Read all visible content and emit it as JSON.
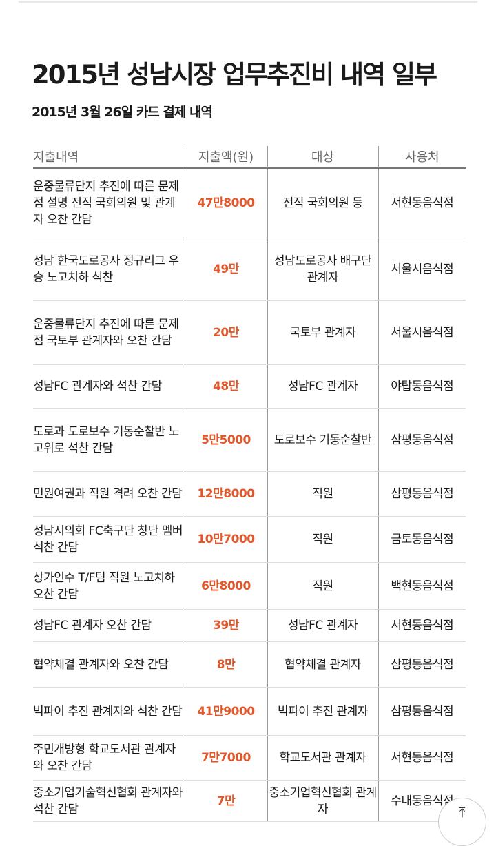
{
  "title": "2015년 성남시장 업무추진비 내역 일부",
  "subtitle": "2015년 3월 26일 카드 결제 내역",
  "headers": [
    "지출내역",
    "지출액(원)",
    "대상",
    "사용처"
  ],
  "rows": [
    {
      "desc": "운중물류단지 추진에 따른 문제점 설명 전직 국회의원 및 관계자 오찬 간담",
      "amount": "47만8000",
      "target": "전직 국회의원 등",
      "place": "서현동음식점"
    },
    {
      "desc": "성남 한국도로공사 정규리그 우승 노고치하 석찬",
      "amount": "49만",
      "target": "성남도로공사 배구단 관계자",
      "place": "서울시음식점"
    },
    {
      "desc": "운중물류단지 추진에 따른 문제점 국토부 관계자와 오찬 간담",
      "amount": "20만",
      "target": "국토부 관계자",
      "place": "서울시음식점"
    },
    {
      "desc": "성남FC 관계자와 석찬 간담",
      "amount": "48만",
      "target": "성남FC 관계자",
      "place": "야탑동음식점"
    },
    {
      "desc": "도로과 도로보수 기동순찰반 노고위로 석찬 간담",
      "amount": "5만5000",
      "target": "도로보수 기동순찰반",
      "place": "삼평동음식점"
    },
    {
      "desc": "민원여권과 직원 격려 오찬 간담",
      "amount": "12만8000",
      "target": "직원",
      "place": "삼평동음식점"
    },
    {
      "desc": "성남시의회 FC축구단 창단 멤버 석찬 간담",
      "amount": "10만7000",
      "target": "직원",
      "place": "금토동음식점"
    },
    {
      "desc": "상가인수 T/F팀 직원 노고치하 오찬 간담",
      "amount": "6만8000",
      "target": "직원",
      "place": "백현동음식점"
    },
    {
      "desc": "성남FC 관계자 오찬 간담",
      "amount": "39만",
      "target": "성남FC 관계자",
      "place": "서현동음식점"
    },
    {
      "desc": "협약체결 관계자와 오찬 간담",
      "amount": "8만",
      "target": "협약체결 관계자",
      "place": "삼평동음식점"
    },
    {
      "desc": "빅파이 추진 관계자와 석찬 간담",
      "amount": "41만9000",
      "target": "빅파이 추진 관계자",
      "place": "삼평동음식점"
    },
    {
      "desc": "주민개방형 학교도서관 관계자와 오찬 간담",
      "amount": "7만7000",
      "target": "학교도서관 관계자",
      "place": "서현동음식점"
    },
    {
      "desc": "중소기업기술혁신협회 관계자와 석찬 간담",
      "amount": "7만",
      "target": "중소기업혁신협회 관계자",
      "place": "수내동음식점"
    }
  ],
  "scroll_top_icon": "arrow-up-to-top-icon",
  "accent_color": "#e2572a"
}
